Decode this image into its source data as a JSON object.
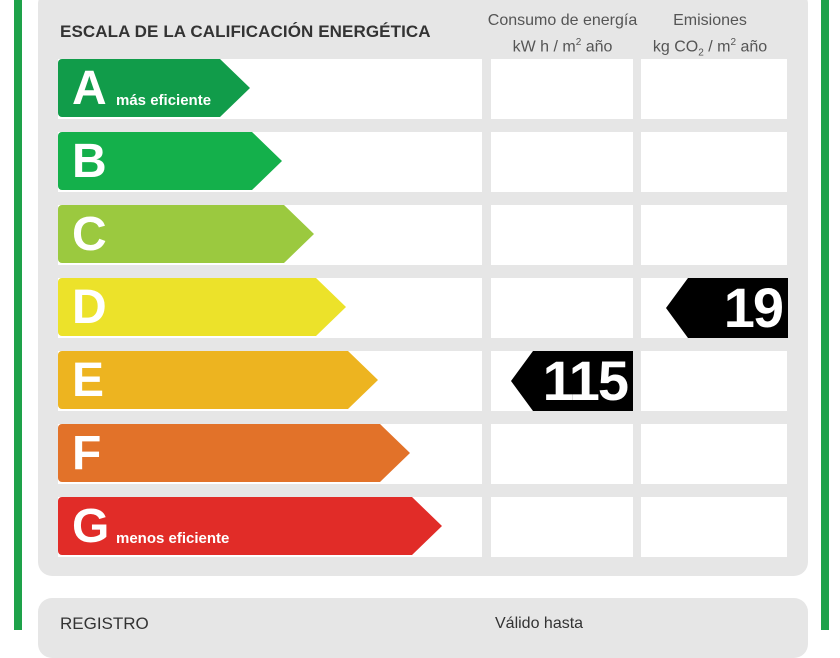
{
  "header": {
    "scale_title": "ESCALA DE LA CALIFICACIÓN ENERGÉTICA",
    "consumo_line1": "Consumo de energía",
    "consumo_line2_a": "kW h  / m",
    "consumo_line2_sup": "2",
    "consumo_line2_b": " año",
    "emis_line1": "Emisiones",
    "emis_line2_a": "kg CO",
    "emis_line2_sub": "2",
    "emis_line2_b": "  / m",
    "emis_line2_sup": "2",
    "emis_line2_c": " año"
  },
  "bands": [
    {
      "letter": "A",
      "sub": "más eficiente",
      "color": "#119c4a"
    },
    {
      "letter": "B",
      "sub": "",
      "color": "#14b04b"
    },
    {
      "letter": "C",
      "sub": "",
      "color": "#9bc93f"
    },
    {
      "letter": "D",
      "sub": "",
      "color": "#ece22a"
    },
    {
      "letter": "E",
      "sub": "",
      "color": "#edb420"
    },
    {
      "letter": "F",
      "sub": "",
      "color": "#e27229"
    },
    {
      "letter": "G",
      "sub": "menos eficiente",
      "color": "#e12c28"
    }
  ],
  "ratings": {
    "consumo": {
      "band": "E",
      "value": "115"
    },
    "emisiones": {
      "band": "D",
      "value": "19"
    }
  },
  "footer": {
    "registro_label": "REGISTRO",
    "valido_label": "Válido hasta"
  }
}
